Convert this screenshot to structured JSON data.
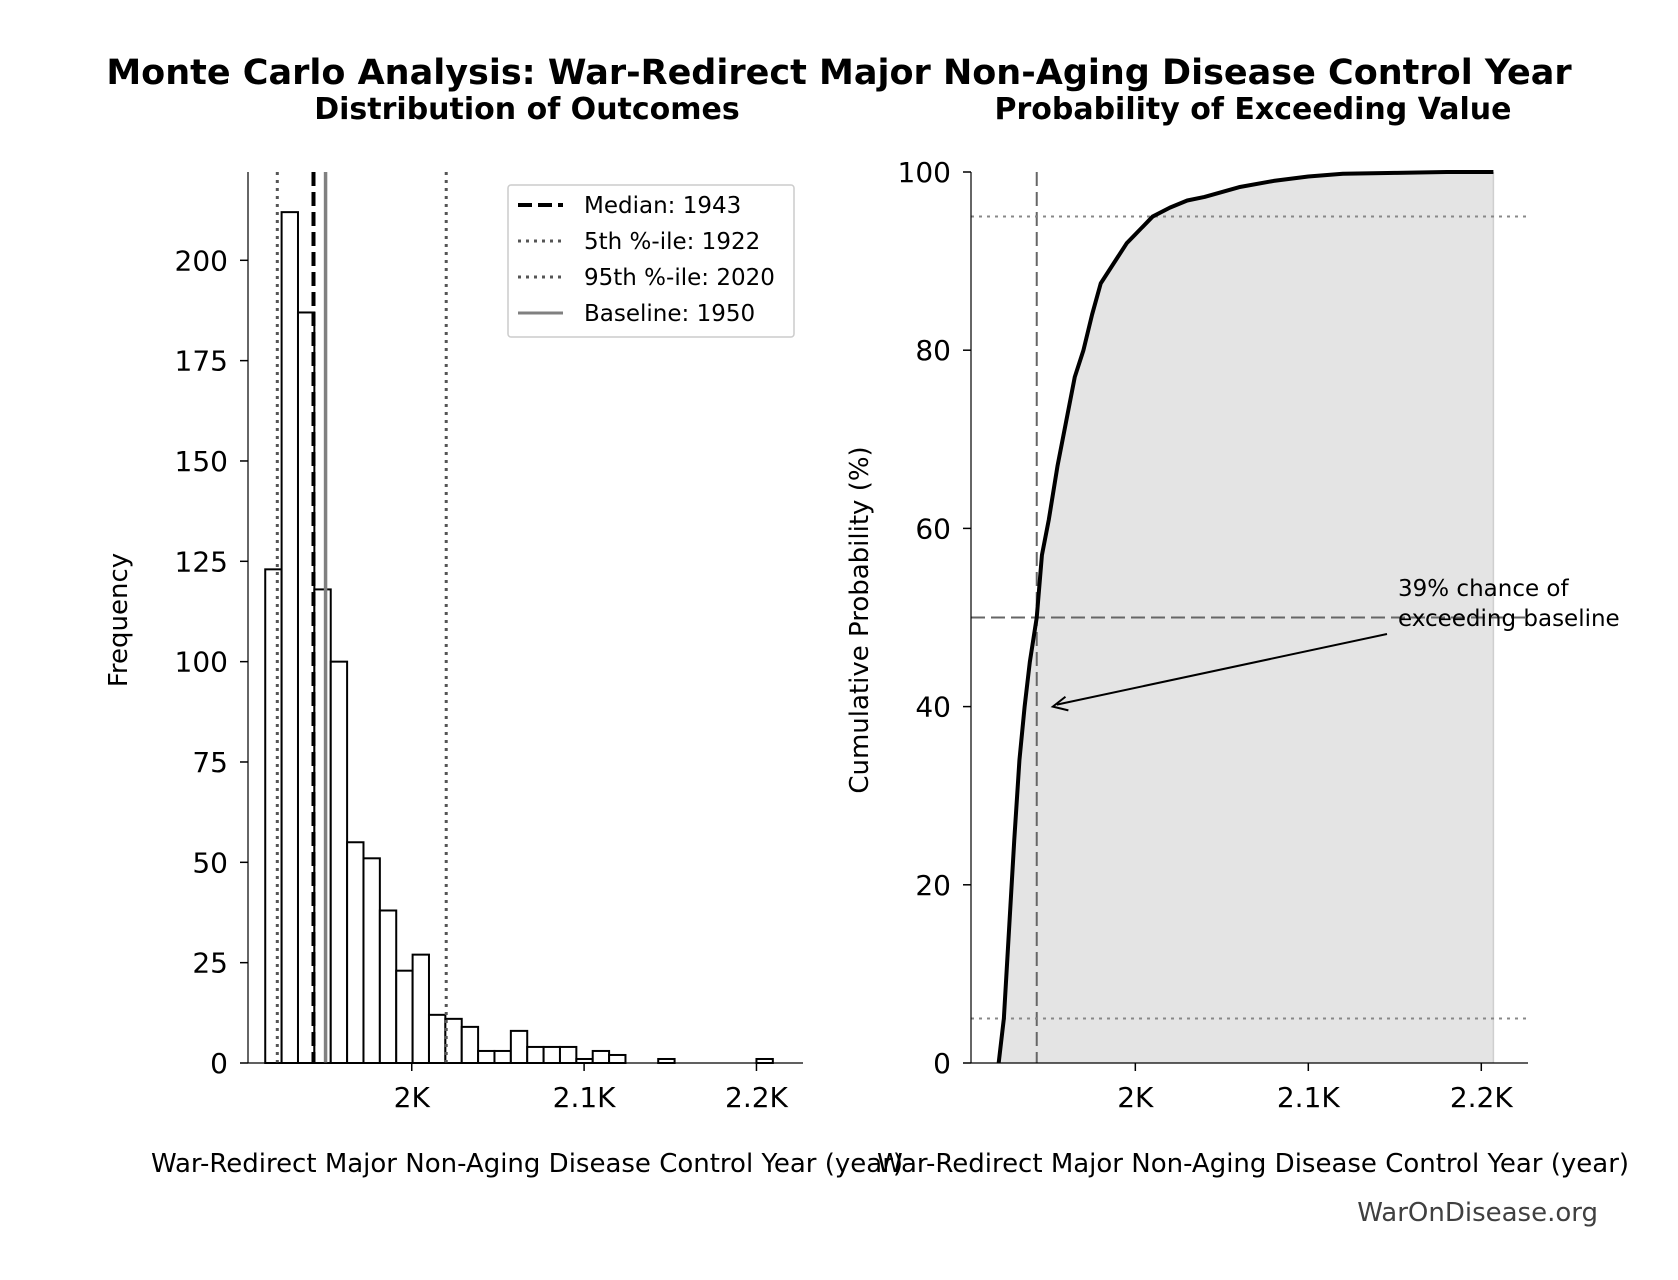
{
  "figure": {
    "suptitle": "Monte Carlo Analysis: War-Redirect Major Non-Aging Disease Control Year",
    "watermark": "WarOnDisease.org"
  },
  "chart_data": [
    {
      "type": "bar",
      "title": "Distribution of Outcomes",
      "xlabel": "War-Redirect Major Non-Aging Disease Control Year (year)",
      "ylabel": "Frequency",
      "xlim": [
        1905,
        2227
      ],
      "ylim": [
        0,
        222
      ],
      "bin_width": 9.5,
      "bins": [
        {
          "x0": 1915,
          "count": 123
        },
        {
          "x0": 1924.5,
          "count": 212
        },
        {
          "x0": 1934,
          "count": 187
        },
        {
          "x0": 1943.5,
          "count": 118
        },
        {
          "x0": 1953,
          "count": 100
        },
        {
          "x0": 1962.5,
          "count": 55
        },
        {
          "x0": 1972,
          "count": 51
        },
        {
          "x0": 1981.5,
          "count": 38
        },
        {
          "x0": 1991,
          "count": 23
        },
        {
          "x0": 2000.5,
          "count": 27
        },
        {
          "x0": 2010,
          "count": 12
        },
        {
          "x0": 2019.5,
          "count": 11
        },
        {
          "x0": 2029,
          "count": 9
        },
        {
          "x0": 2038.5,
          "count": 3
        },
        {
          "x0": 2048,
          "count": 3
        },
        {
          "x0": 2057.5,
          "count": 8
        },
        {
          "x0": 2067,
          "count": 4
        },
        {
          "x0": 2076.5,
          "count": 4
        },
        {
          "x0": 2086,
          "count": 4
        },
        {
          "x0": 2095.5,
          "count": 1
        },
        {
          "x0": 2105,
          "count": 3
        },
        {
          "x0": 2114.5,
          "count": 2
        },
        {
          "x0": 2124,
          "count": 0
        },
        {
          "x0": 2133.5,
          "count": 0
        },
        {
          "x0": 2143,
          "count": 1
        },
        {
          "x0": 2152.5,
          "count": 0
        },
        {
          "x0": 2162,
          "count": 0
        },
        {
          "x0": 2171.5,
          "count": 0
        },
        {
          "x0": 2181,
          "count": 0
        },
        {
          "x0": 2190.5,
          "count": 0
        },
        {
          "x0": 2200,
          "count": 1
        }
      ],
      "x_ticks": [
        {
          "value": 2000,
          "label": "2K"
        },
        {
          "value": 2100,
          "label": "2.1K"
        },
        {
          "value": 2200,
          "label": "2.2K"
        }
      ],
      "y_ticks": [
        {
          "value": 0,
          "label": "0"
        },
        {
          "value": 25,
          "label": "25"
        },
        {
          "value": 50,
          "label": "50"
        },
        {
          "value": 75,
          "label": "75"
        },
        {
          "value": 100,
          "label": "100"
        },
        {
          "value": 125,
          "label": "125"
        },
        {
          "value": 150,
          "label": "150"
        },
        {
          "value": 175,
          "label": "175"
        },
        {
          "value": 200,
          "label": "200"
        }
      ],
      "reference_lines": [
        {
          "label": "Median: 1943",
          "value": 1943,
          "style": "dashed",
          "color": "#000000"
        },
        {
          "label": "5th %-ile: 1922",
          "value": 1922,
          "style": "dotted",
          "color": "#555555"
        },
        {
          "label": "95th %-ile: 2020",
          "value": 2020,
          "style": "dotted",
          "color": "#555555"
        },
        {
          "label": "Baseline: 1950",
          "value": 1950,
          "style": "solid",
          "color": "#808080"
        }
      ],
      "legend": "top-right",
      "grid": false
    },
    {
      "type": "area",
      "title": "Probability of Exceeding Value",
      "xlabel": "War-Redirect Major Non-Aging Disease Control Year (year)",
      "ylabel": "Cumulative Probability (%)",
      "xlim": [
        1905,
        2227
      ],
      "ylim": [
        0,
        100
      ],
      "x_ticks": [
        {
          "value": 2000,
          "label": "2K"
        },
        {
          "value": 2100,
          "label": "2.1K"
        },
        {
          "value": 2200,
          "label": "2.2K"
        }
      ],
      "y_ticks": [
        {
          "value": 0,
          "label": "0"
        },
        {
          "value": 20,
          "label": "20"
        },
        {
          "value": 40,
          "label": "40"
        },
        {
          "value": 60,
          "label": "60"
        },
        {
          "value": 80,
          "label": "80"
        },
        {
          "value": 100,
          "label": "100"
        }
      ],
      "series": [
        {
          "x": [
            1921,
            1924,
            1927,
            1930,
            1933,
            1936,
            1939,
            1943,
            1946,
            1950,
            1955,
            1960,
            1965,
            1970,
            1975,
            1980,
            1985,
            1990,
            1995,
            2000,
            2010,
            2020,
            2030,
            2040,
            2060,
            2080,
            2100,
            2120,
            2150,
            2180,
            2207
          ],
          "y": [
            0,
            5,
            15,
            25,
            34,
            40,
            45,
            50,
            57,
            61,
            67,
            72,
            77,
            80,
            84,
            87.5,
            89,
            90.5,
            92,
            93,
            95,
            96,
            96.8,
            97.2,
            98.3,
            99,
            99.5,
            99.8,
            99.9,
            100,
            100
          ]
        }
      ],
      "reference_lines": [
        {
          "axis": "x",
          "value": 1943,
          "style": "dashed"
        },
        {
          "axis": "y",
          "value": 50,
          "style": "dashed"
        },
        {
          "axis": "y",
          "value": 5,
          "style": "dotted"
        },
        {
          "axis": "y",
          "value": 95,
          "style": "dotted"
        }
      ],
      "annotation": {
        "text_lines": [
          "39% chance of",
          "exceeding baseline"
        ],
        "target": {
          "x": 1950,
          "y": 40
        }
      },
      "grid": false
    }
  ]
}
